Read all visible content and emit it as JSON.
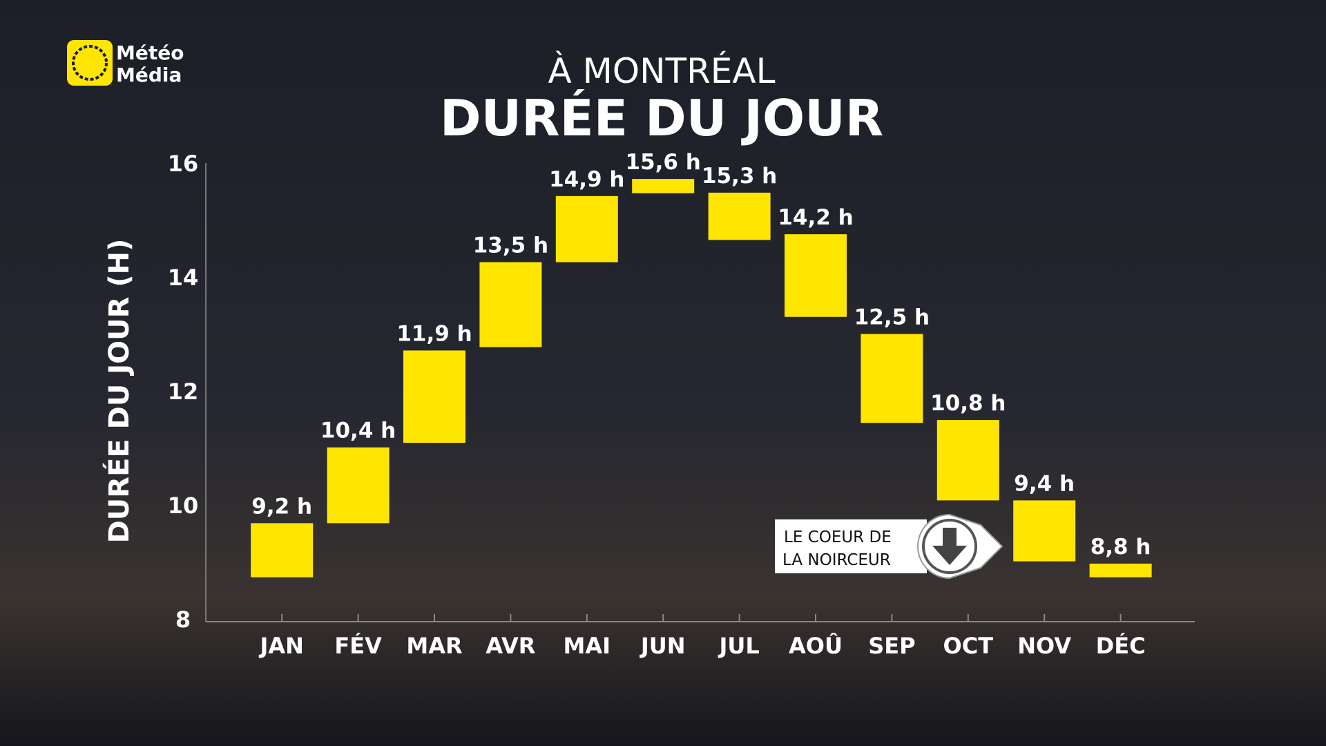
{
  "logo": {
    "line1": "Météo",
    "line2": "Média"
  },
  "chart_data": {
    "type": "floating-bar",
    "subtitle": "À MONTRÉAL",
    "title": "DURÉE DU JOUR",
    "y_label": "DURÉE DU JOUR (H)",
    "categories": [
      "JAN",
      "FÉV",
      "MAR",
      "AVR",
      "MAI",
      "JUN",
      "JUL",
      "AOÛ",
      "SEP",
      "OCT",
      "NOV",
      "DÉC"
    ],
    "low": [
      8.73,
      9.68,
      11.09,
      12.77,
      14.26,
      15.47,
      14.65,
      13.3,
      11.44,
      10.08,
      9.01,
      8.73
    ],
    "high": [
      9.68,
      11.01,
      12.71,
      14.26,
      15.42,
      15.72,
      15.48,
      14.75,
      13.0,
      11.49,
      10.08,
      8.97
    ],
    "values": [
      9.2,
      10.4,
      11.9,
      13.5,
      14.9,
      15.6,
      15.3,
      14.2,
      12.5,
      10.8,
      9.4,
      8.8
    ],
    "value_labels": [
      "9,2 h",
      "10,4 h",
      "11,9 h",
      "13,5 h",
      "14,9 h",
      "15,6 h",
      "15,3 h",
      "14,2 h",
      "12,5 h",
      "10,8 h",
      "9,4 h",
      "8,8 h"
    ],
    "color": "#ffe600",
    "ylim": [
      8,
      16
    ],
    "yticks": [
      8,
      10,
      12,
      14,
      16
    ],
    "annotation": {
      "line1": "LE COEUR DE",
      "line2": "LA NOIRCEUR"
    }
  }
}
